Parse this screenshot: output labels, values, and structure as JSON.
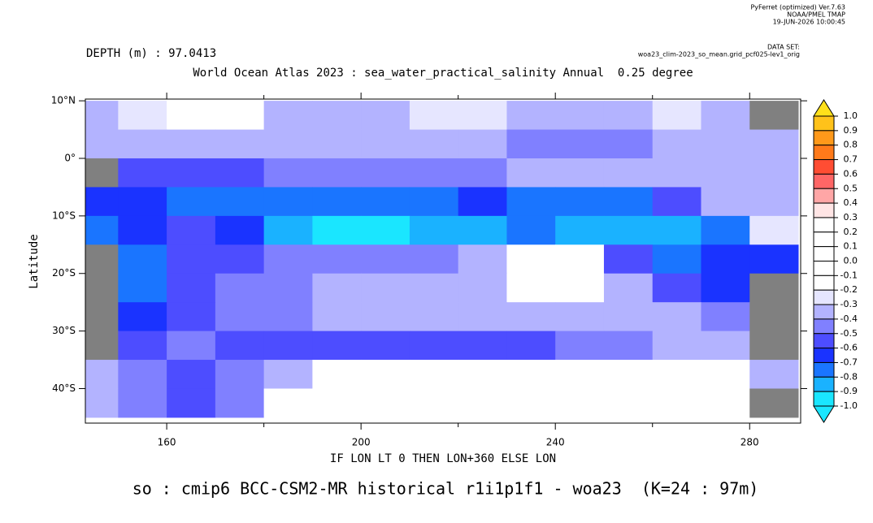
{
  "chart_data": {
    "type": "heatmap",
    "credit": [
      "PyFerret (optimized) Ver.7.63",
      "NOAA/PMEL TMAP",
      "19-JUN-2026 10:00:45"
    ],
    "dataset_label": "DATA SET:",
    "dataset": "woa23_clim-2023_so_mean.grid_pcf025-lev1_orig",
    "depth": "DEPTH (m) : 97.0413",
    "title": "World Ocean Atlas 2023 : sea_water_practical_salinity Annual  0.25 degree",
    "xlabel": "IF LON LT 0 THEN LON+360 ELSE LON",
    "ylabel": "Latitude",
    "caption": "so : cmip6 BCC-CSM2-MR historical r1i1p1f1 - woa23  (K=24 : 97m)",
    "xlim": [
      143.25,
      290.5
    ],
    "ylim": [
      -46,
      10.3
    ],
    "xticks": [
      160,
      200,
      240,
      280
    ],
    "xminor_ticks": [
      180,
      220,
      260
    ],
    "yticks": [
      {
        "value": 10,
        "label": "10°N"
      },
      {
        "value": 0,
        "label": "0°"
      },
      {
        "value": -10,
        "label": "10°S"
      },
      {
        "value": -20,
        "label": "20°S"
      },
      {
        "value": -30,
        "label": "30°S"
      },
      {
        "value": -40,
        "label": "40°S"
      }
    ],
    "land_color": "#808080",
    "lon": [
      145,
      155,
      165,
      175,
      185,
      195,
      205,
      215,
      225,
      235,
      245,
      255,
      265,
      275,
      285
    ],
    "lat": [
      7.5,
      2.5,
      -2.5,
      -7.5,
      -12.5,
      -17.5,
      -22.5,
      -27.5,
      -32.5,
      -37.5,
      -42.5
    ],
    "values": [
      [
        -0.35,
        -0.3,
        0,
        0,
        -0.35,
        -0.35,
        -0.35,
        -0.3,
        -0.3,
        -0.35,
        -0.35,
        -0.35,
        -0.3,
        -0.35,
        null
      ],
      [
        -0.35,
        -0.35,
        -0.35,
        -0.35,
        -0.35,
        -0.35,
        -0.35,
        -0.35,
        -0.35,
        -0.45,
        -0.45,
        -0.45,
        -0.4,
        -0.35,
        -0.35
      ],
      [
        null,
        -0.55,
        -0.6,
        -0.55,
        -0.5,
        -0.45,
        -0.45,
        -0.45,
        -0.45,
        -0.4,
        -0.4,
        -0.35,
        -0.35,
        -0.35,
        -0.35
      ],
      [
        -0.65,
        -0.7,
        -0.75,
        -0.75,
        -0.8,
        -0.8,
        -0.8,
        -0.75,
        -0.7,
        -0.75,
        -0.8,
        -0.75,
        -0.6,
        -0.4,
        -0.35
      ],
      [
        -0.75,
        -0.65,
        -0.6,
        -0.65,
        -0.85,
        -0.95,
        -0.95,
        -0.9,
        -0.85,
        -0.8,
        -0.85,
        -0.85,
        -0.85,
        -0.75,
        -0.25
      ],
      [
        null,
        -0.75,
        -0.6,
        -0.55,
        -0.5,
        -0.45,
        -0.45,
        -0.45,
        -0.35,
        0,
        0,
        -0.55,
        -0.75,
        -0.7,
        -0.65
      ],
      [
        null,
        -0.75,
        -0.55,
        -0.5,
        -0.45,
        -0.35,
        -0.35,
        -0.35,
        -0.35,
        0,
        0,
        -0.35,
        -0.6,
        -0.7,
        null
      ],
      [
        null,
        -0.65,
        -0.55,
        -0.45,
        -0.45,
        -0.4,
        -0.4,
        -0.35,
        -0.35,
        -0.35,
        -0.35,
        -0.35,
        -0.4,
        -0.5,
        null
      ],
      [
        null,
        -0.55,
        -0.5,
        -0.55,
        -0.6,
        -0.6,
        -0.6,
        -0.6,
        -0.6,
        -0.6,
        -0.5,
        -0.45,
        -0.4,
        -0.4,
        null
      ],
      [
        -0.35,
        -0.5,
        -0.55,
        -0.5,
        -0.35,
        0,
        0,
        0,
        0,
        0,
        0,
        0,
        0,
        0,
        -0.35
      ],
      [
        -0.35,
        -0.5,
        -0.6,
        -0.45,
        0,
        0,
        0,
        0,
        0,
        0,
        0,
        0,
        0,
        0,
        null
      ]
    ],
    "colorbar": {
      "levels": [
        {
          "value": 1,
          "label": "1.0"
        },
        {
          "value": 0.9,
          "label": "0.9"
        },
        {
          "value": 0.8,
          "label": "0.8"
        },
        {
          "value": 0.7,
          "label": "0.7"
        },
        {
          "value": 0.6,
          "label": "0.6"
        },
        {
          "value": 0.5,
          "label": "0.5"
        },
        {
          "value": 0.4,
          "label": "0.4"
        },
        {
          "value": 0.3,
          "label": "0.3"
        },
        {
          "value": 0.2,
          "label": "0.2"
        },
        {
          "value": 0.1,
          "label": "0.1"
        },
        {
          "value": 0,
          "label": "0.0"
        },
        {
          "value": -0.1,
          "label": "-0.1"
        },
        {
          "value": -0.2,
          "label": "-0.2"
        },
        {
          "value": -0.3,
          "label": "-0.3"
        },
        {
          "value": -0.4,
          "label": "-0.4"
        },
        {
          "value": -0.5,
          "label": "-0.5"
        },
        {
          "value": -0.6,
          "label": "-0.6"
        },
        {
          "value": -0.7,
          "label": "-0.7"
        },
        {
          "value": -0.8,
          "label": "-0.8"
        },
        {
          "value": -0.9,
          "label": "-0.9"
        },
        {
          "value": -1,
          "label": "-1.0"
        }
      ],
      "colors": [
        "#ffe01a",
        "#ffc21a",
        "#ff991a",
        "#ff7a1a",
        "#ff4d33",
        "#ff6666",
        "#ffa6a6",
        "#ffe5e5",
        "#ffffff",
        "#ffffff",
        "#ffffff",
        "#ffffff",
        "#ffffff",
        "#e6e6ff",
        "#b3b3ff",
        "#8080ff",
        "#4d4dff",
        "#1a33ff",
        "#1a75ff",
        "#1ab2ff",
        "#1ae6ff",
        "#1ae6ff"
      ]
    }
  }
}
